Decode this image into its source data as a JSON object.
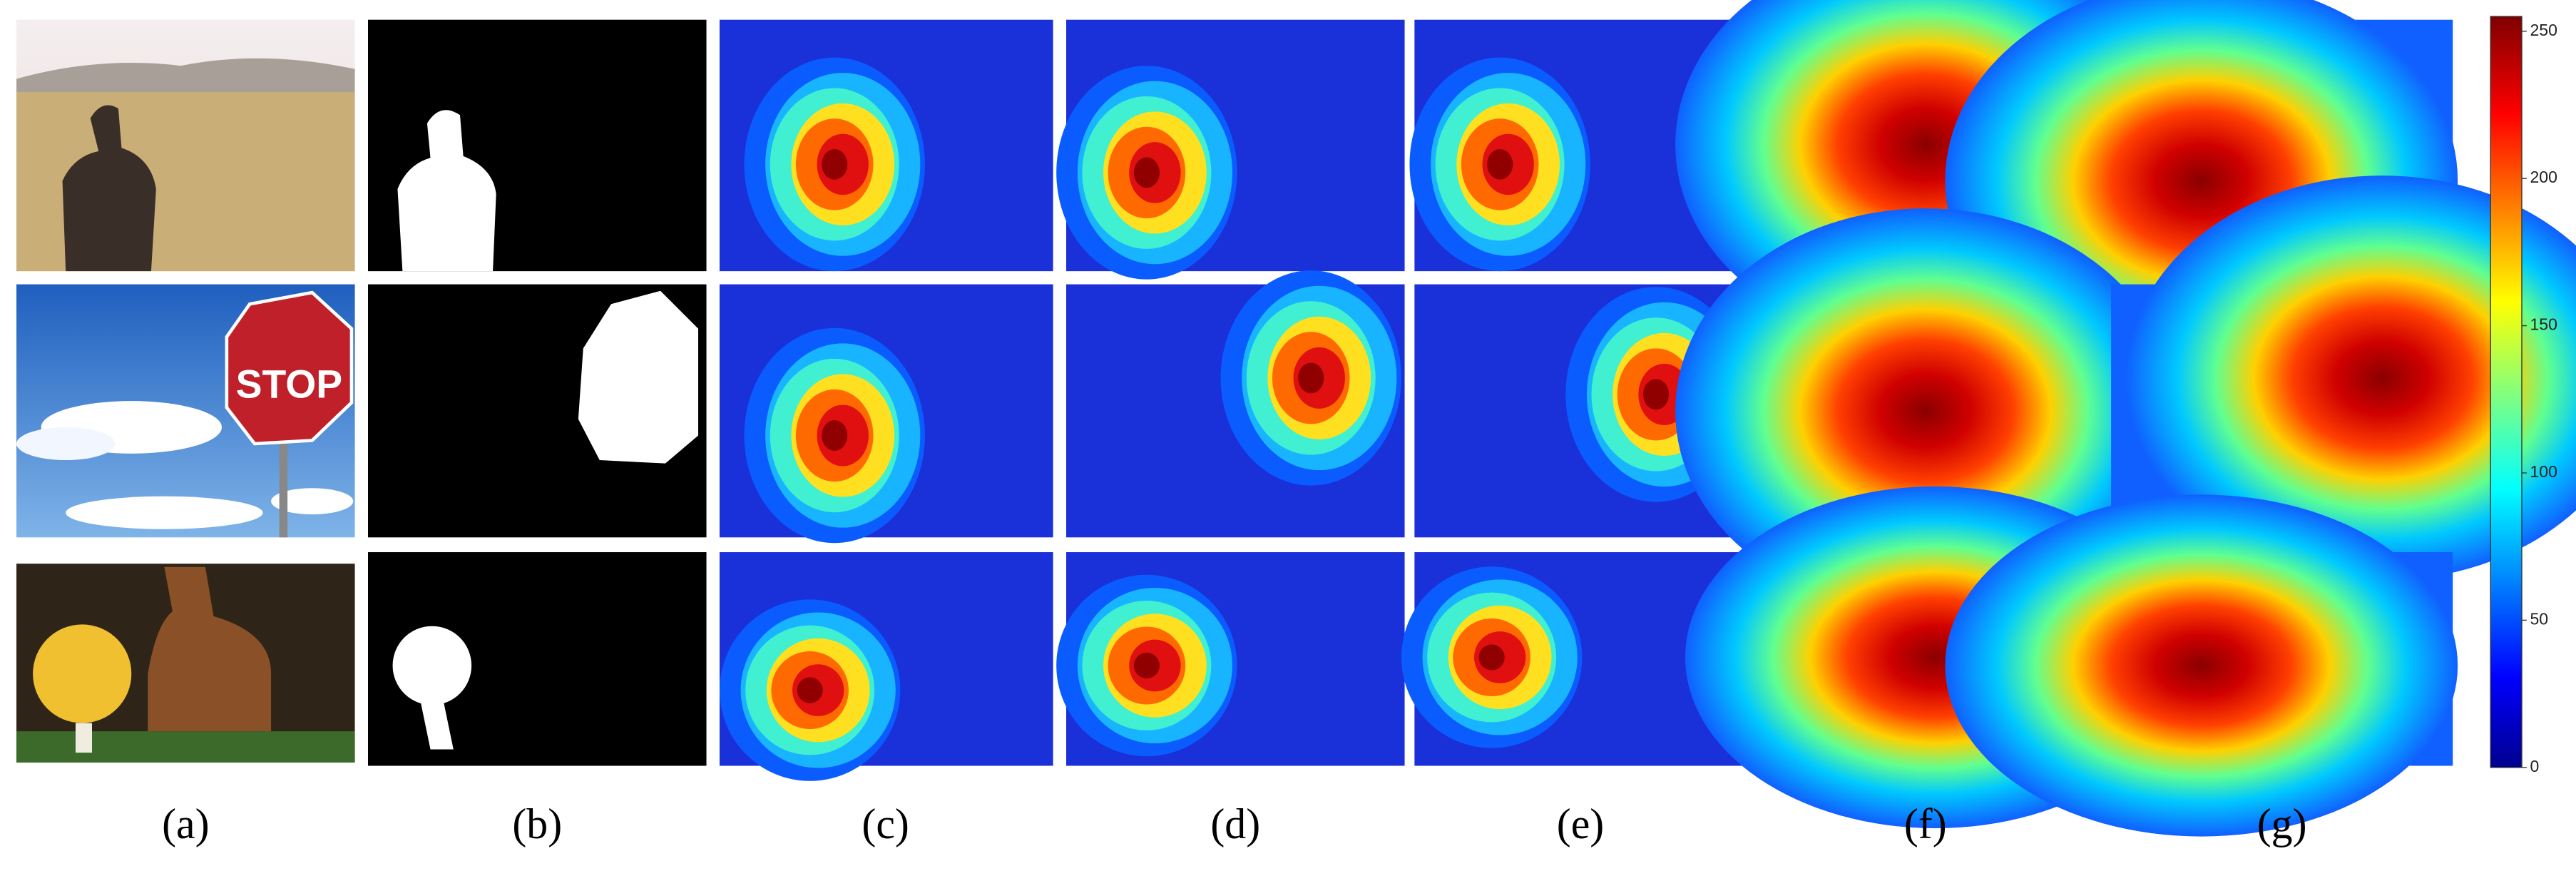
{
  "figure": {
    "panel_labels": [
      "(a)",
      "(b)",
      "(c)",
      "(d)",
      "(e)",
      "(f)",
      "(g)"
    ],
    "sign_text": "STOP",
    "colorbar": {
      "lim": [
        0,
        255
      ],
      "ticks": [
        0,
        50,
        100,
        150,
        200,
        250
      ]
    }
  }
}
